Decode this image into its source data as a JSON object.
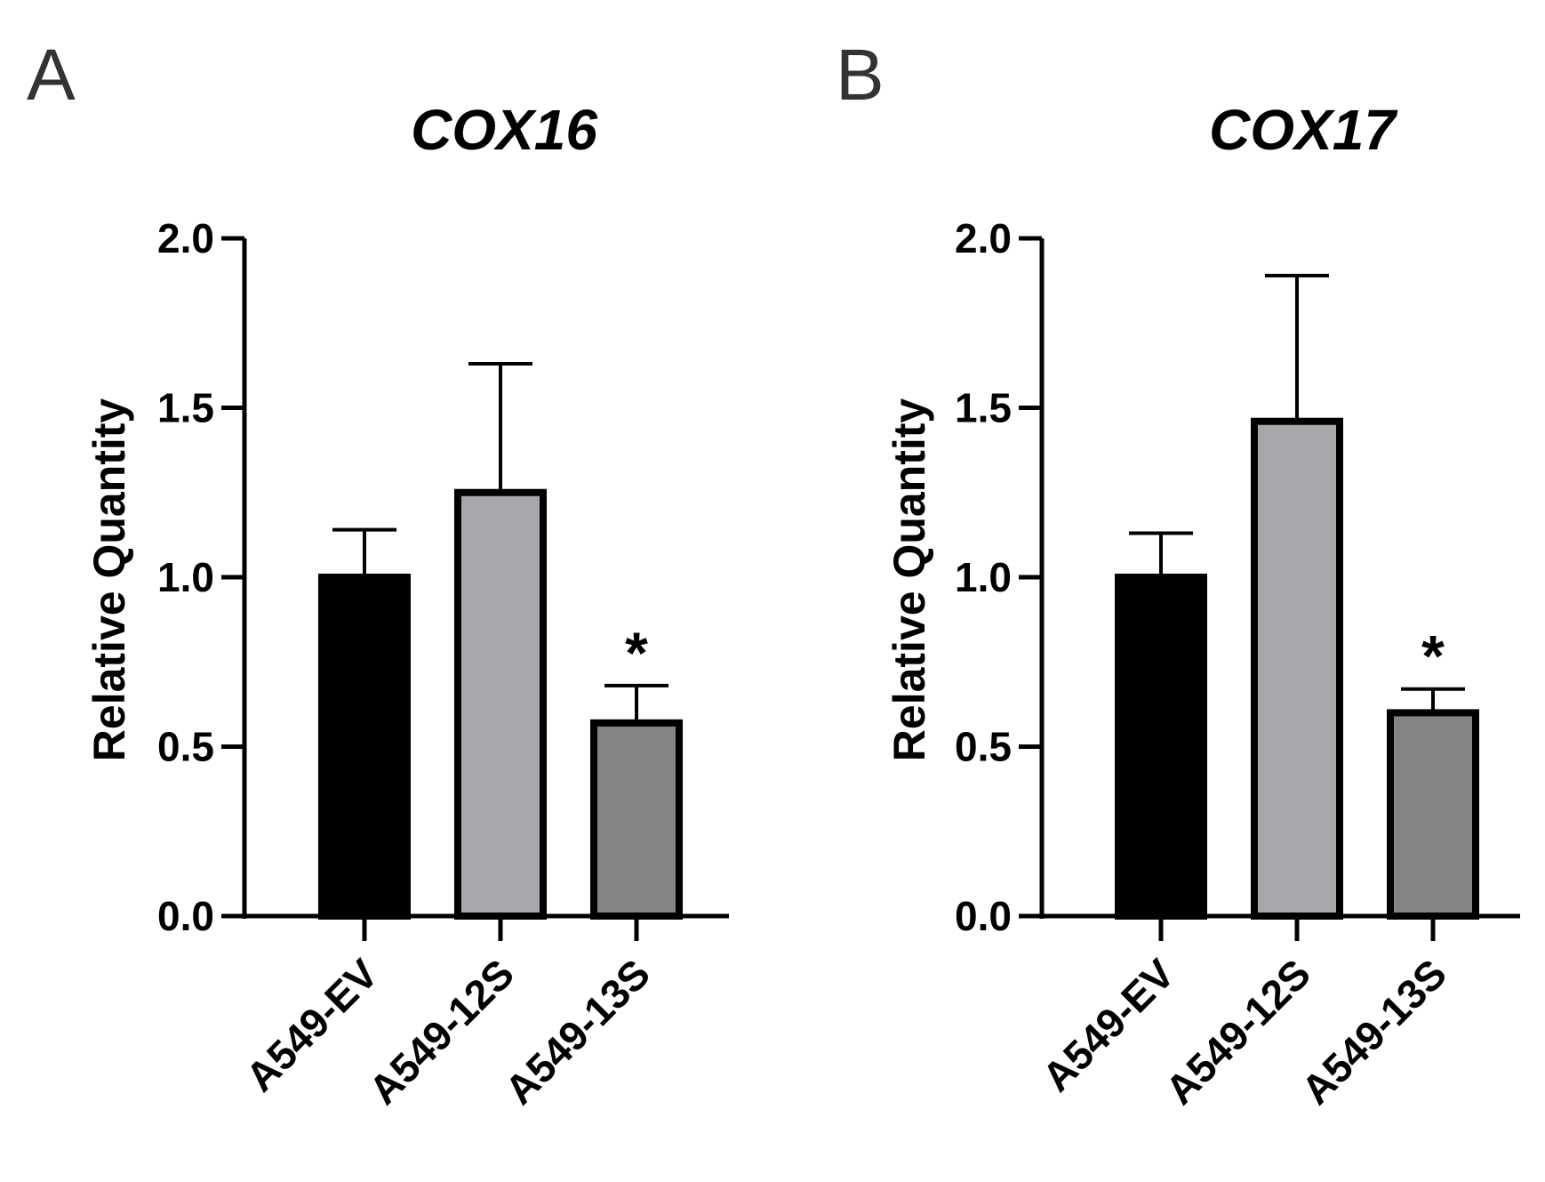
{
  "panels": [
    {
      "letter": "A",
      "chart_data": {
        "type": "bar",
        "title": "COX16",
        "xlabel": "",
        "ylabel": "Relative Quantity",
        "ylim": [
          0,
          2
        ],
        "yticks": [
          "0.0",
          "0.5",
          "1.0",
          "1.5",
          "2.0"
        ],
        "categories": [
          "A549-EV",
          "A549-12S",
          "A549-13S"
        ],
        "values": [
          1.0,
          1.25,
          0.57
        ],
        "errors": [
          0.14,
          0.38,
          0.11
        ],
        "colors": [
          "#000000",
          "#a6a6ab",
          "#838383"
        ],
        "annotations": [
          "",
          "",
          "*"
        ]
      }
    },
    {
      "letter": "B",
      "chart_data": {
        "type": "bar",
        "title": "COX17",
        "xlabel": "",
        "ylabel": "Relative Quantity",
        "ylim": [
          0,
          2
        ],
        "yticks": [
          "0.0",
          "0.5",
          "1.0",
          "1.5",
          "2.0"
        ],
        "categories": [
          "A549-EV",
          "A549-12S",
          "A549-13S"
        ],
        "values": [
          1.0,
          1.46,
          0.6
        ],
        "errors": [
          0.13,
          0.43,
          0.07
        ],
        "colors": [
          "#000000",
          "#a6a6ab",
          "#838383"
        ],
        "annotations": [
          "",
          "",
          "*"
        ]
      }
    }
  ]
}
